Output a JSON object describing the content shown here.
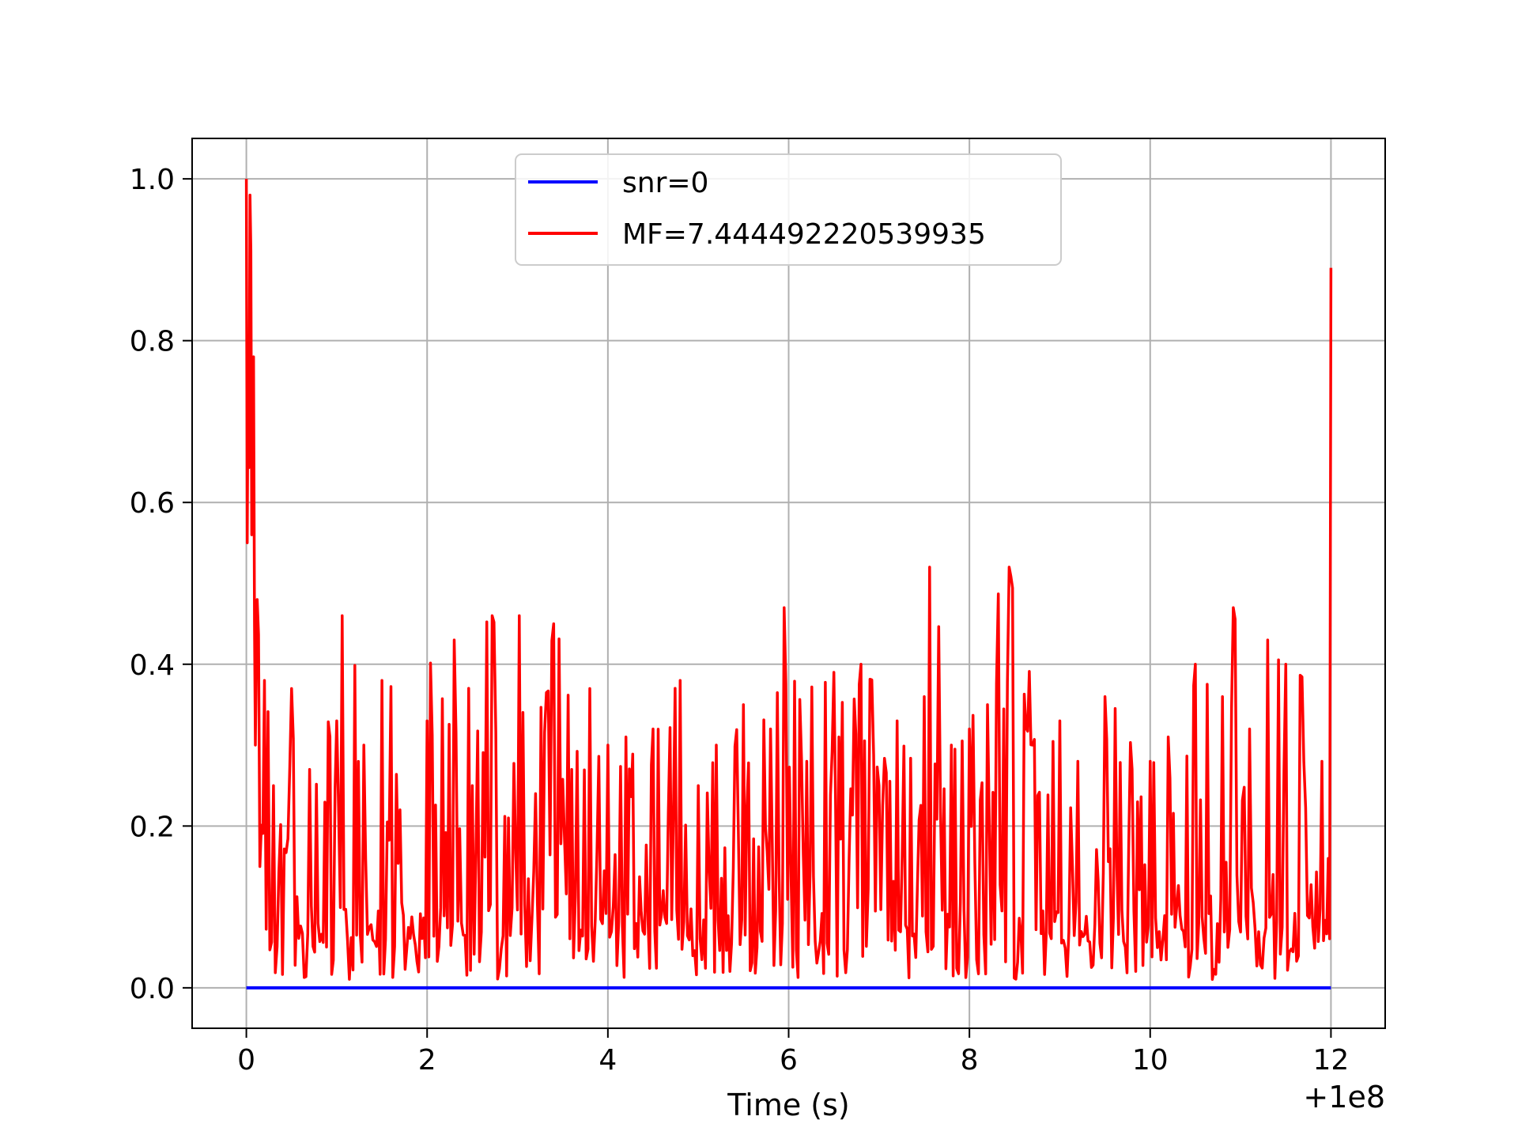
{
  "chart_data": {
    "type": "line",
    "xlabel": "Time (s)",
    "ylabel": "",
    "x_offset_label": "+1e8",
    "xlim": [
      -0.6,
      12.6
    ],
    "ylim": [
      -0.05,
      1.05
    ],
    "x_ticks": [
      0,
      2,
      4,
      6,
      8,
      10,
      12
    ],
    "x_tick_labels": [
      "0",
      "2",
      "4",
      "6",
      "8",
      "10",
      "12"
    ],
    "y_ticks": [
      0.0,
      0.2,
      0.4,
      0.6,
      0.8,
      1.0
    ],
    "y_tick_labels": [
      "0.0",
      "0.2",
      "0.4",
      "0.6",
      "0.8",
      "1.0"
    ],
    "grid": true,
    "legend_position": "upper-center",
    "series": [
      {
        "name": "snr=0",
        "color": "#0000ff",
        "x": [
          0,
          12
        ],
        "y": [
          0,
          0
        ]
      },
      {
        "name": "MF=7.444492220539935",
        "color": "#ff0000",
        "x": [
          0.0,
          0.02,
          0.04,
          0.06,
          0.08,
          0.1,
          0.12,
          0.15,
          0.2,
          0.3,
          0.5,
          0.7,
          1.0,
          1.06,
          1.3,
          1.5,
          1.7,
          2.0,
          2.3,
          2.5,
          2.72,
          2.9,
          3.02,
          3.2,
          3.4,
          3.6,
          3.8,
          4.0,
          4.2,
          4.5,
          4.8,
          5.0,
          5.2,
          5.5,
          5.8,
          5.95,
          6.2,
          6.5,
          6.8,
          7.0,
          7.2,
          7.5,
          7.56,
          7.8,
          8.0,
          8.2,
          8.44,
          8.7,
          9.0,
          9.2,
          9.5,
          9.8,
          10.0,
          10.2,
          10.5,
          10.8,
          10.92,
          11.1,
          11.3,
          11.5,
          11.7,
          11.9,
          11.97,
          12.0
        ],
        "y": [
          1.0,
          0.79,
          0.98,
          0.56,
          0.78,
          0.3,
          0.48,
          0.15,
          0.38,
          0.25,
          0.37,
          0.27,
          0.33,
          0.46,
          0.3,
          0.38,
          0.22,
          0.33,
          0.43,
          0.25,
          0.46,
          0.21,
          0.46,
          0.24,
          0.45,
          0.27,
          0.37,
          0.3,
          0.31,
          0.32,
          0.38,
          0.25,
          0.3,
          0.35,
          0.32,
          0.47,
          0.28,
          0.39,
          0.4,
          0.25,
          0.33,
          0.36,
          0.52,
          0.3,
          0.32,
          0.35,
          0.52,
          0.3,
          0.33,
          0.28,
          0.36,
          0.27,
          0.28,
          0.31,
          0.4,
          0.36,
          0.47,
          0.32,
          0.43,
          0.4,
          0.28,
          0.28,
          0.16,
          0.89
        ]
      }
    ]
  }
}
